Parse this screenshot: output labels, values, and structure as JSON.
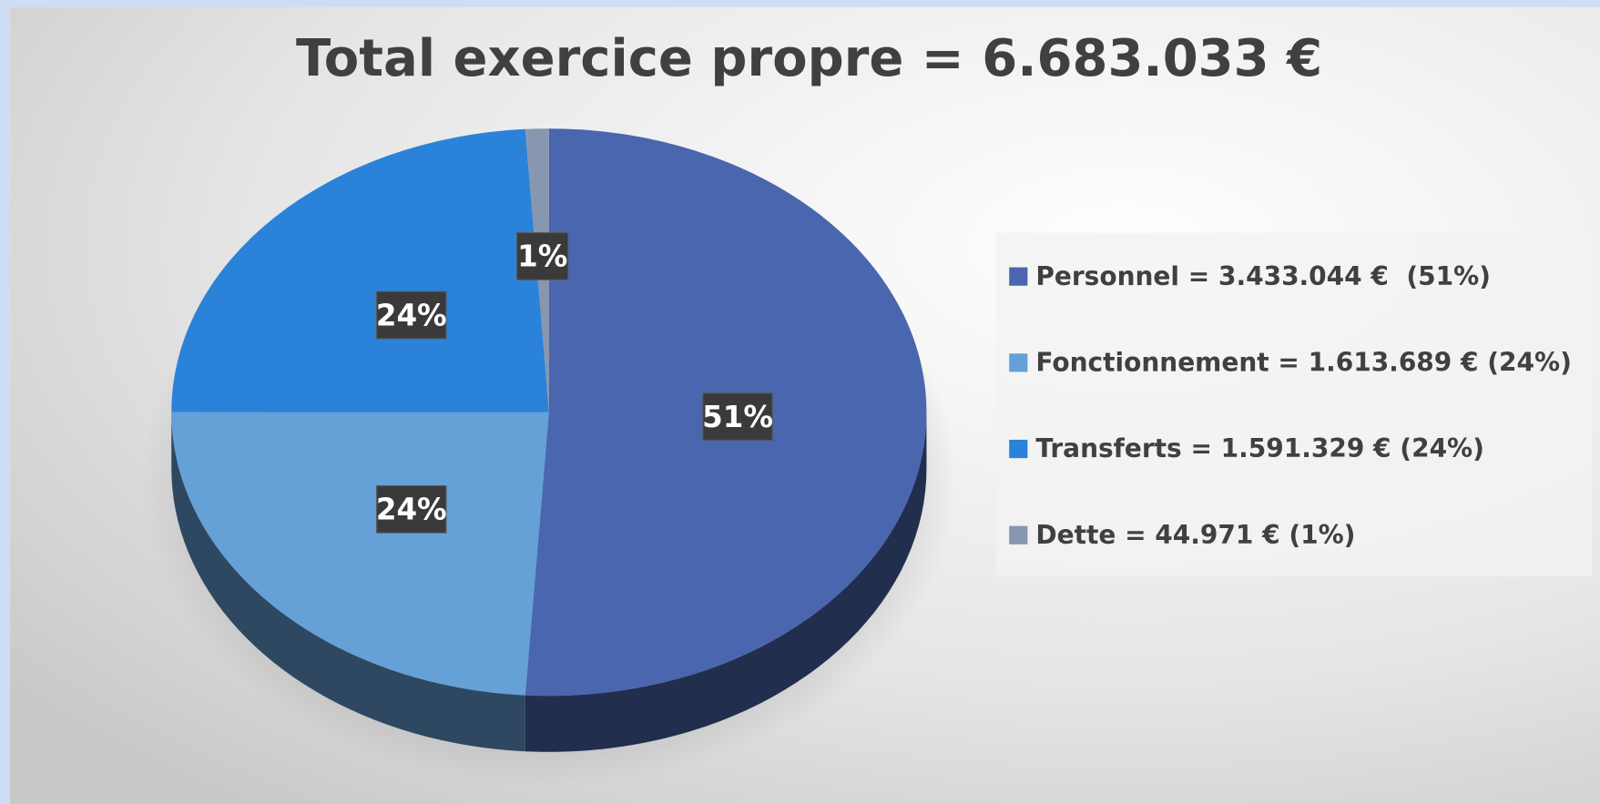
{
  "chart_data": {
    "type": "pie",
    "title": "Total exercice propre = 6.683.033 €",
    "categories": [
      "Personnel = 3.433.044 €  (51%)",
      "Fonctionnement = 1.613.689 € (24%)",
      "Transferts = 1.591.329 € (24%)",
      "Dette = 44.971 € (1%)"
    ],
    "values": [
      51,
      24,
      24,
      1
    ],
    "value_labels": [
      "51%",
      "24%",
      "24%",
      "1%"
    ],
    "colors": [
      "#4a66ae",
      "#65a0d6",
      "#2b82d9",
      "#8797b0"
    ],
    "legend": "right"
  }
}
